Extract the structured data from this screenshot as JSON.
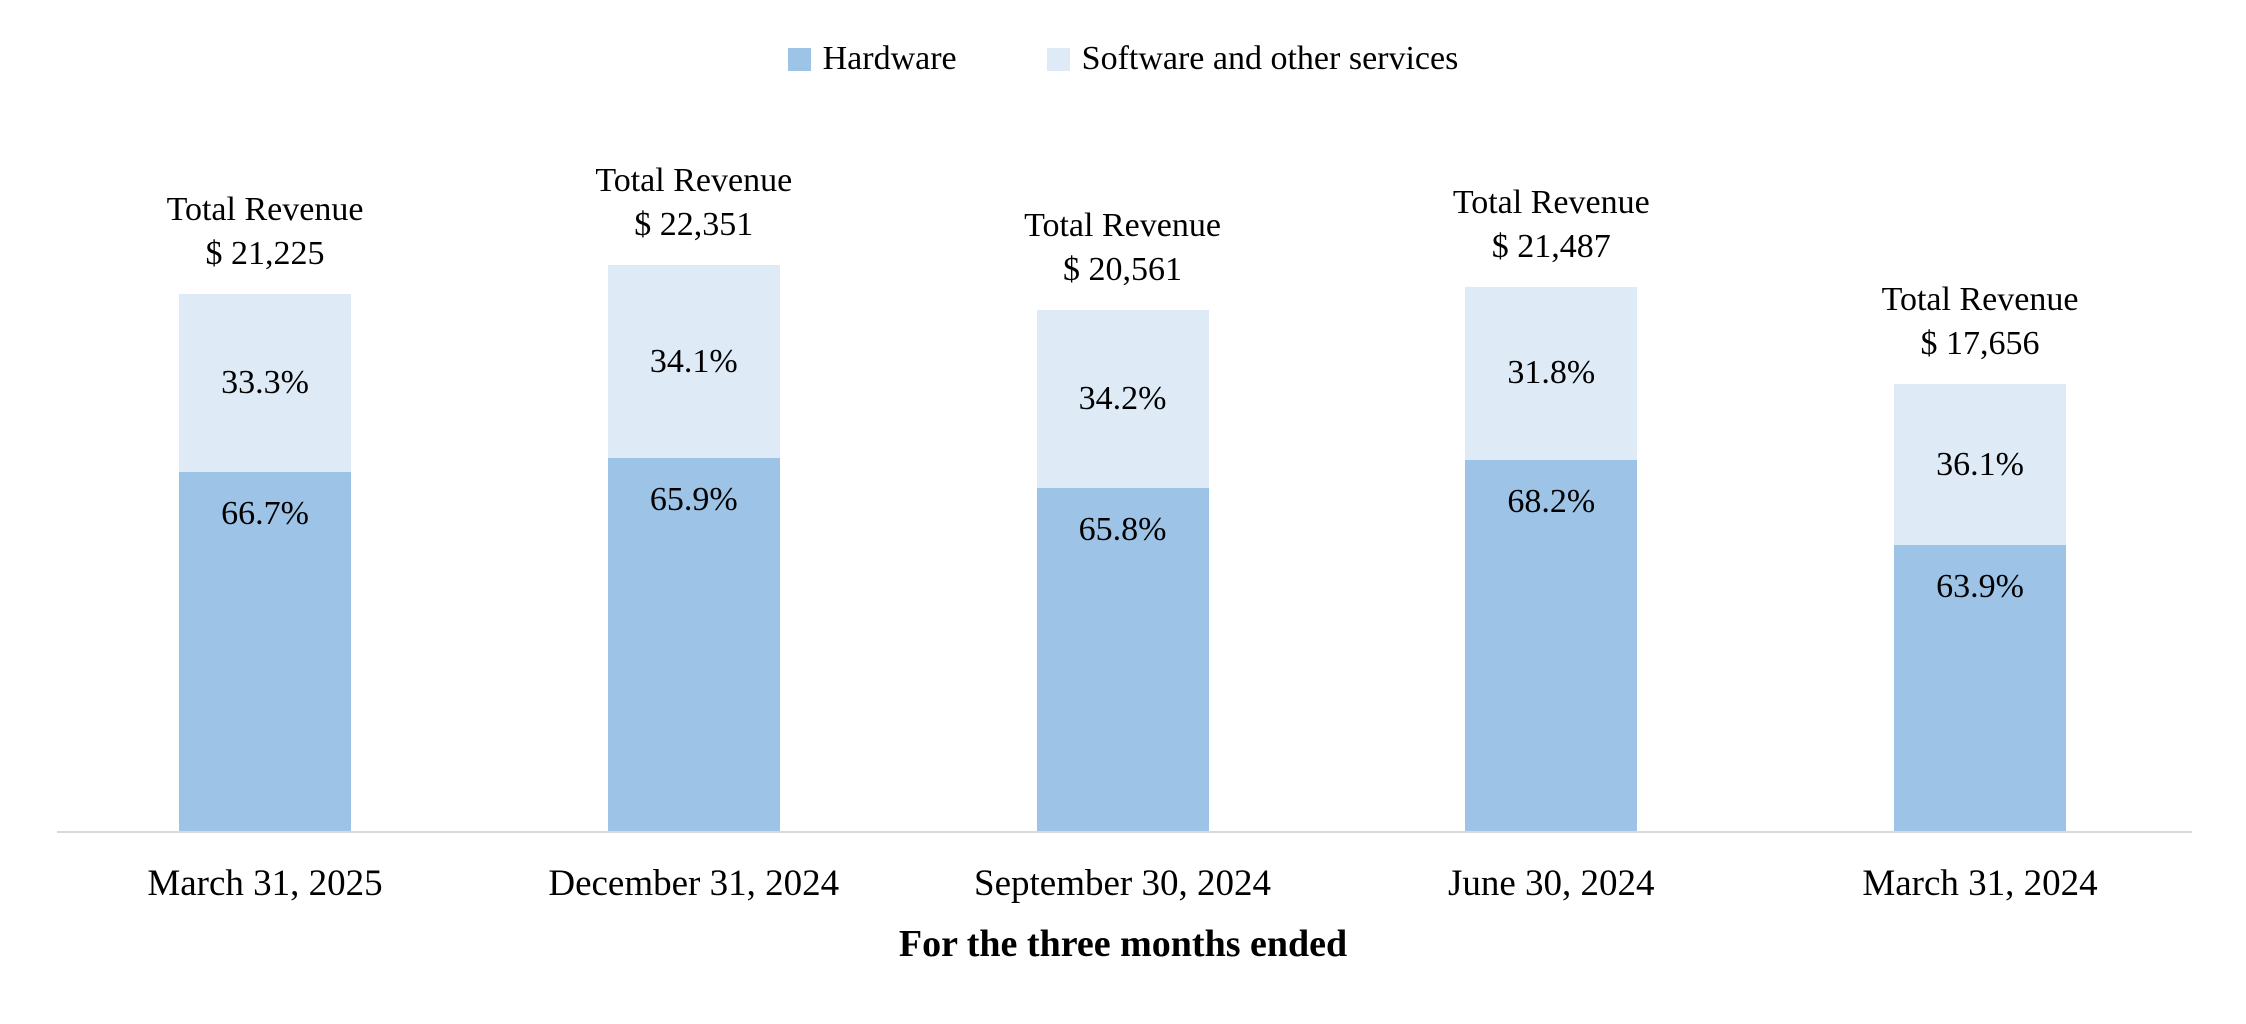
{
  "page": {
    "background_color": "#ffffff",
    "axis_line_color": "#d9d9d9",
    "text_color": "#000000"
  },
  "legend": {
    "items": [
      {
        "label": "Hardware",
        "color": "#9DC3E6"
      },
      {
        "label": "Software and other services",
        "color": "#DEEBF7"
      }
    ]
  },
  "chart_data": {
    "type": "bar",
    "stacked": true,
    "title": "",
    "xlabel": "For the three months ended",
    "ylabel": "",
    "legend_position": "top",
    "grid": false,
    "categories": [
      "March 31, 2025",
      "December 31, 2024",
      "September 30, 2024",
      "June 30, 2024",
      "March 31, 2024"
    ],
    "totals": [
      21225,
      22351,
      20561,
      21487,
      17656
    ],
    "total_label_title": "Total Revenue",
    "total_labels": [
      "$ 21,225",
      "$ 22,351",
      "$ 20,561",
      "$ 21,487",
      "$ 17,656"
    ],
    "series": [
      {
        "name": "Hardware",
        "color": "#9DC3E6",
        "values_pct": [
          66.7,
          65.9,
          65.8,
          68.2,
          63.9
        ],
        "labels": [
          "66.7%",
          "65.9%",
          "65.8%",
          "68.2%",
          "63.9%"
        ]
      },
      {
        "name": "Software and other services",
        "color": "#DEEBF7",
        "values_pct": [
          33.3,
          34.1,
          34.2,
          31.8,
          36.1
        ],
        "labels": [
          "33.3%",
          "34.1%",
          "34.2%",
          "31.8%",
          "36.1%"
        ]
      }
    ]
  }
}
